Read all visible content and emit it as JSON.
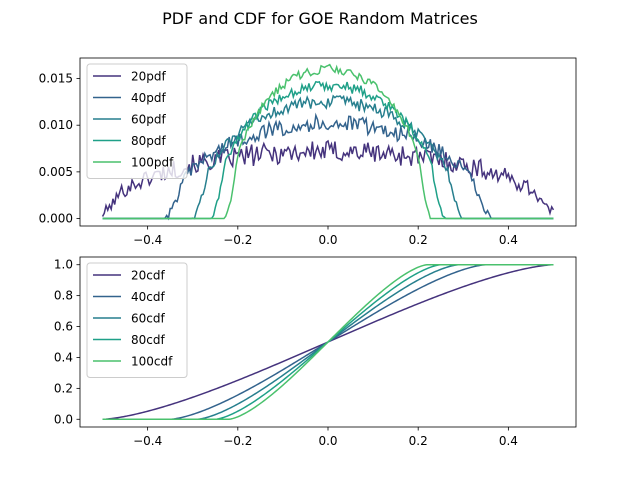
{
  "figure": {
    "title": "PDF and CDF for GOE Random Matrices"
  },
  "chart_data": [
    {
      "type": "line",
      "id": "pdf",
      "xlim": [
        -0.55,
        0.55
      ],
      "ylim": [
        -0.0008,
        0.0172
      ],
      "xticks": [
        -0.4,
        -0.2,
        0.0,
        0.2,
        0.4
      ],
      "xtick_labels": [
        "−0.4",
        "−0.2",
        "0.0",
        "0.2",
        "0.4"
      ],
      "yticks": [
        0.0,
        0.005,
        0.01,
        0.015
      ],
      "ytick_labels": [
        "0.000",
        "0.005",
        "0.010",
        "0.015"
      ],
      "legend_position": "upper-left",
      "grid": false,
      "series": [
        {
          "name": "20pdf",
          "color": "#45337d",
          "n": 20,
          "peak": 0.0072,
          "edge": 0.5,
          "noise": 0.0012
        },
        {
          "name": "40pdf",
          "color": "#33638d",
          "n": 40,
          "peak": 0.0102,
          "edge": 0.35,
          "noise": 0.0009
        },
        {
          "name": "60pdf",
          "color": "#277f8e",
          "n": 60,
          "peak": 0.0125,
          "edge": 0.29,
          "noise": 0.0007
        },
        {
          "name": "80pdf",
          "color": "#1fa088",
          "n": 80,
          "peak": 0.0143,
          "edge": 0.25,
          "noise": 0.0006
        },
        {
          "name": "100pdf",
          "color": "#4ac16d",
          "n": 100,
          "peak": 0.016,
          "edge": 0.22,
          "noise": 0.0005
        }
      ]
    },
    {
      "type": "line",
      "id": "cdf",
      "xlim": [
        -0.55,
        0.55
      ],
      "ylim": [
        -0.05,
        1.05
      ],
      "xticks": [
        -0.4,
        -0.2,
        0.0,
        0.2,
        0.4
      ],
      "xtick_labels": [
        "−0.4",
        "−0.2",
        "0.0",
        "0.2",
        "0.4"
      ],
      "yticks": [
        0.0,
        0.2,
        0.4,
        0.6,
        0.8,
        1.0
      ],
      "ytick_labels": [
        "0.0",
        "0.2",
        "0.4",
        "0.6",
        "0.8",
        "1.0"
      ],
      "legend_position": "upper-left",
      "grid": false,
      "series": [
        {
          "name": "20cdf",
          "color": "#45337d",
          "edge": 0.5
        },
        {
          "name": "40cdf",
          "color": "#33638d",
          "edge": 0.35
        },
        {
          "name": "60cdf",
          "color": "#277f8e",
          "edge": 0.29
        },
        {
          "name": "80cdf",
          "color": "#1fa088",
          "edge": 0.25
        },
        {
          "name": "100cdf",
          "color": "#4ac16d",
          "edge": 0.22
        }
      ]
    }
  ]
}
